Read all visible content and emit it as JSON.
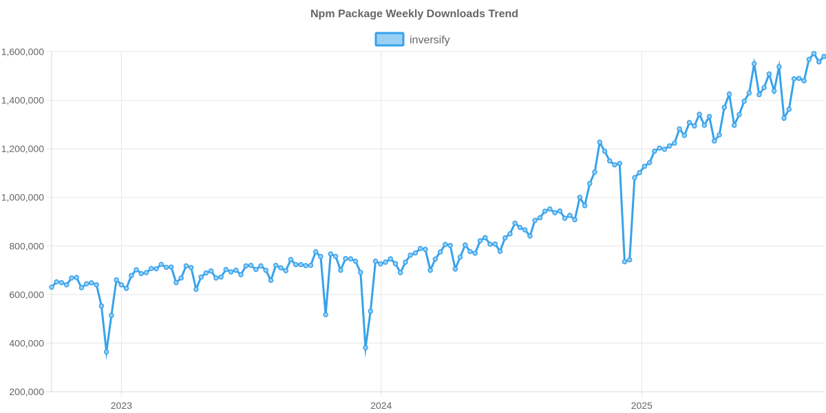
{
  "chart_data": {
    "type": "line",
    "title": "Npm Package Weekly Downloads Trend",
    "xlabel": "",
    "ylabel": "",
    "x_start": "2022-09-25",
    "x_step_days": 7,
    "x_ticks": [
      "2023",
      "2024",
      "2025"
    ],
    "x_tick_dates": [
      "2023-01-01",
      "2024-01-01",
      "2025-01-01"
    ],
    "y_ticks": [
      "200,000",
      "400,000",
      "600,000",
      "800,000",
      "1,000,000",
      "1,200,000",
      "1,400,000",
      "1,600,000"
    ],
    "ylim": [
      200000,
      1600000
    ],
    "grid": true,
    "legend_position": "top",
    "series": [
      {
        "name": "inversify",
        "color": "#36a2eb",
        "fill": "#9ad0f5",
        "values": [
          630000,
          652000,
          649000,
          640000,
          668000,
          670000,
          628000,
          644000,
          648000,
          640000,
          553000,
          364000,
          514000,
          660000,
          640000,
          625000,
          678000,
          702000,
          686000,
          690000,
          707000,
          706000,
          724000,
          712000,
          713000,
          649000,
          668000,
          718000,
          711000,
          622000,
          672000,
          689000,
          697000,
          668000,
          672000,
          703000,
          693000,
          700000,
          682000,
          718000,
          720000,
          703000,
          718000,
          700000,
          658000,
          720000,
          710000,
          698000,
          744000,
          723000,
          723000,
          719000,
          720000,
          776000,
          756000,
          517000,
          767000,
          757000,
          700000,
          748000,
          747000,
          737000,
          691000,
          381000,
          531000,
          737000,
          726000,
          733000,
          747000,
          727000,
          690000,
          733000,
          762000,
          771000,
          789000,
          786000,
          700000,
          746000,
          775000,
          806000,
          802000,
          705000,
          754000,
          804000,
          777000,
          770000,
          821000,
          834000,
          807000,
          808000,
          778000,
          833000,
          850000,
          894000,
          876000,
          866000,
          841000,
          905000,
          916000,
          943000,
          952000,
          937000,
          944000,
          914000,
          926000,
          908000,
          1000000,
          966000,
          1057000,
          1104000,
          1227000,
          1190000,
          1150000,
          1134000,
          1140000,
          735000,
          743000,
          1081000,
          1102000,
          1128000,
          1143000,
          1190000,
          1203000,
          1198000,
          1212000,
          1223000,
          1282000,
          1255000,
          1308000,
          1294000,
          1342000,
          1297000,
          1333000,
          1232000,
          1257000,
          1370000,
          1425000,
          1297000,
          1341000,
          1396000,
          1430000,
          1550000,
          1423000,
          1452000,
          1508000,
          1438000,
          1538000,
          1326000,
          1363000,
          1488000,
          1490000,
          1480000,
          1568000,
          1592000,
          1558000,
          1580000
        ]
      }
    ]
  }
}
